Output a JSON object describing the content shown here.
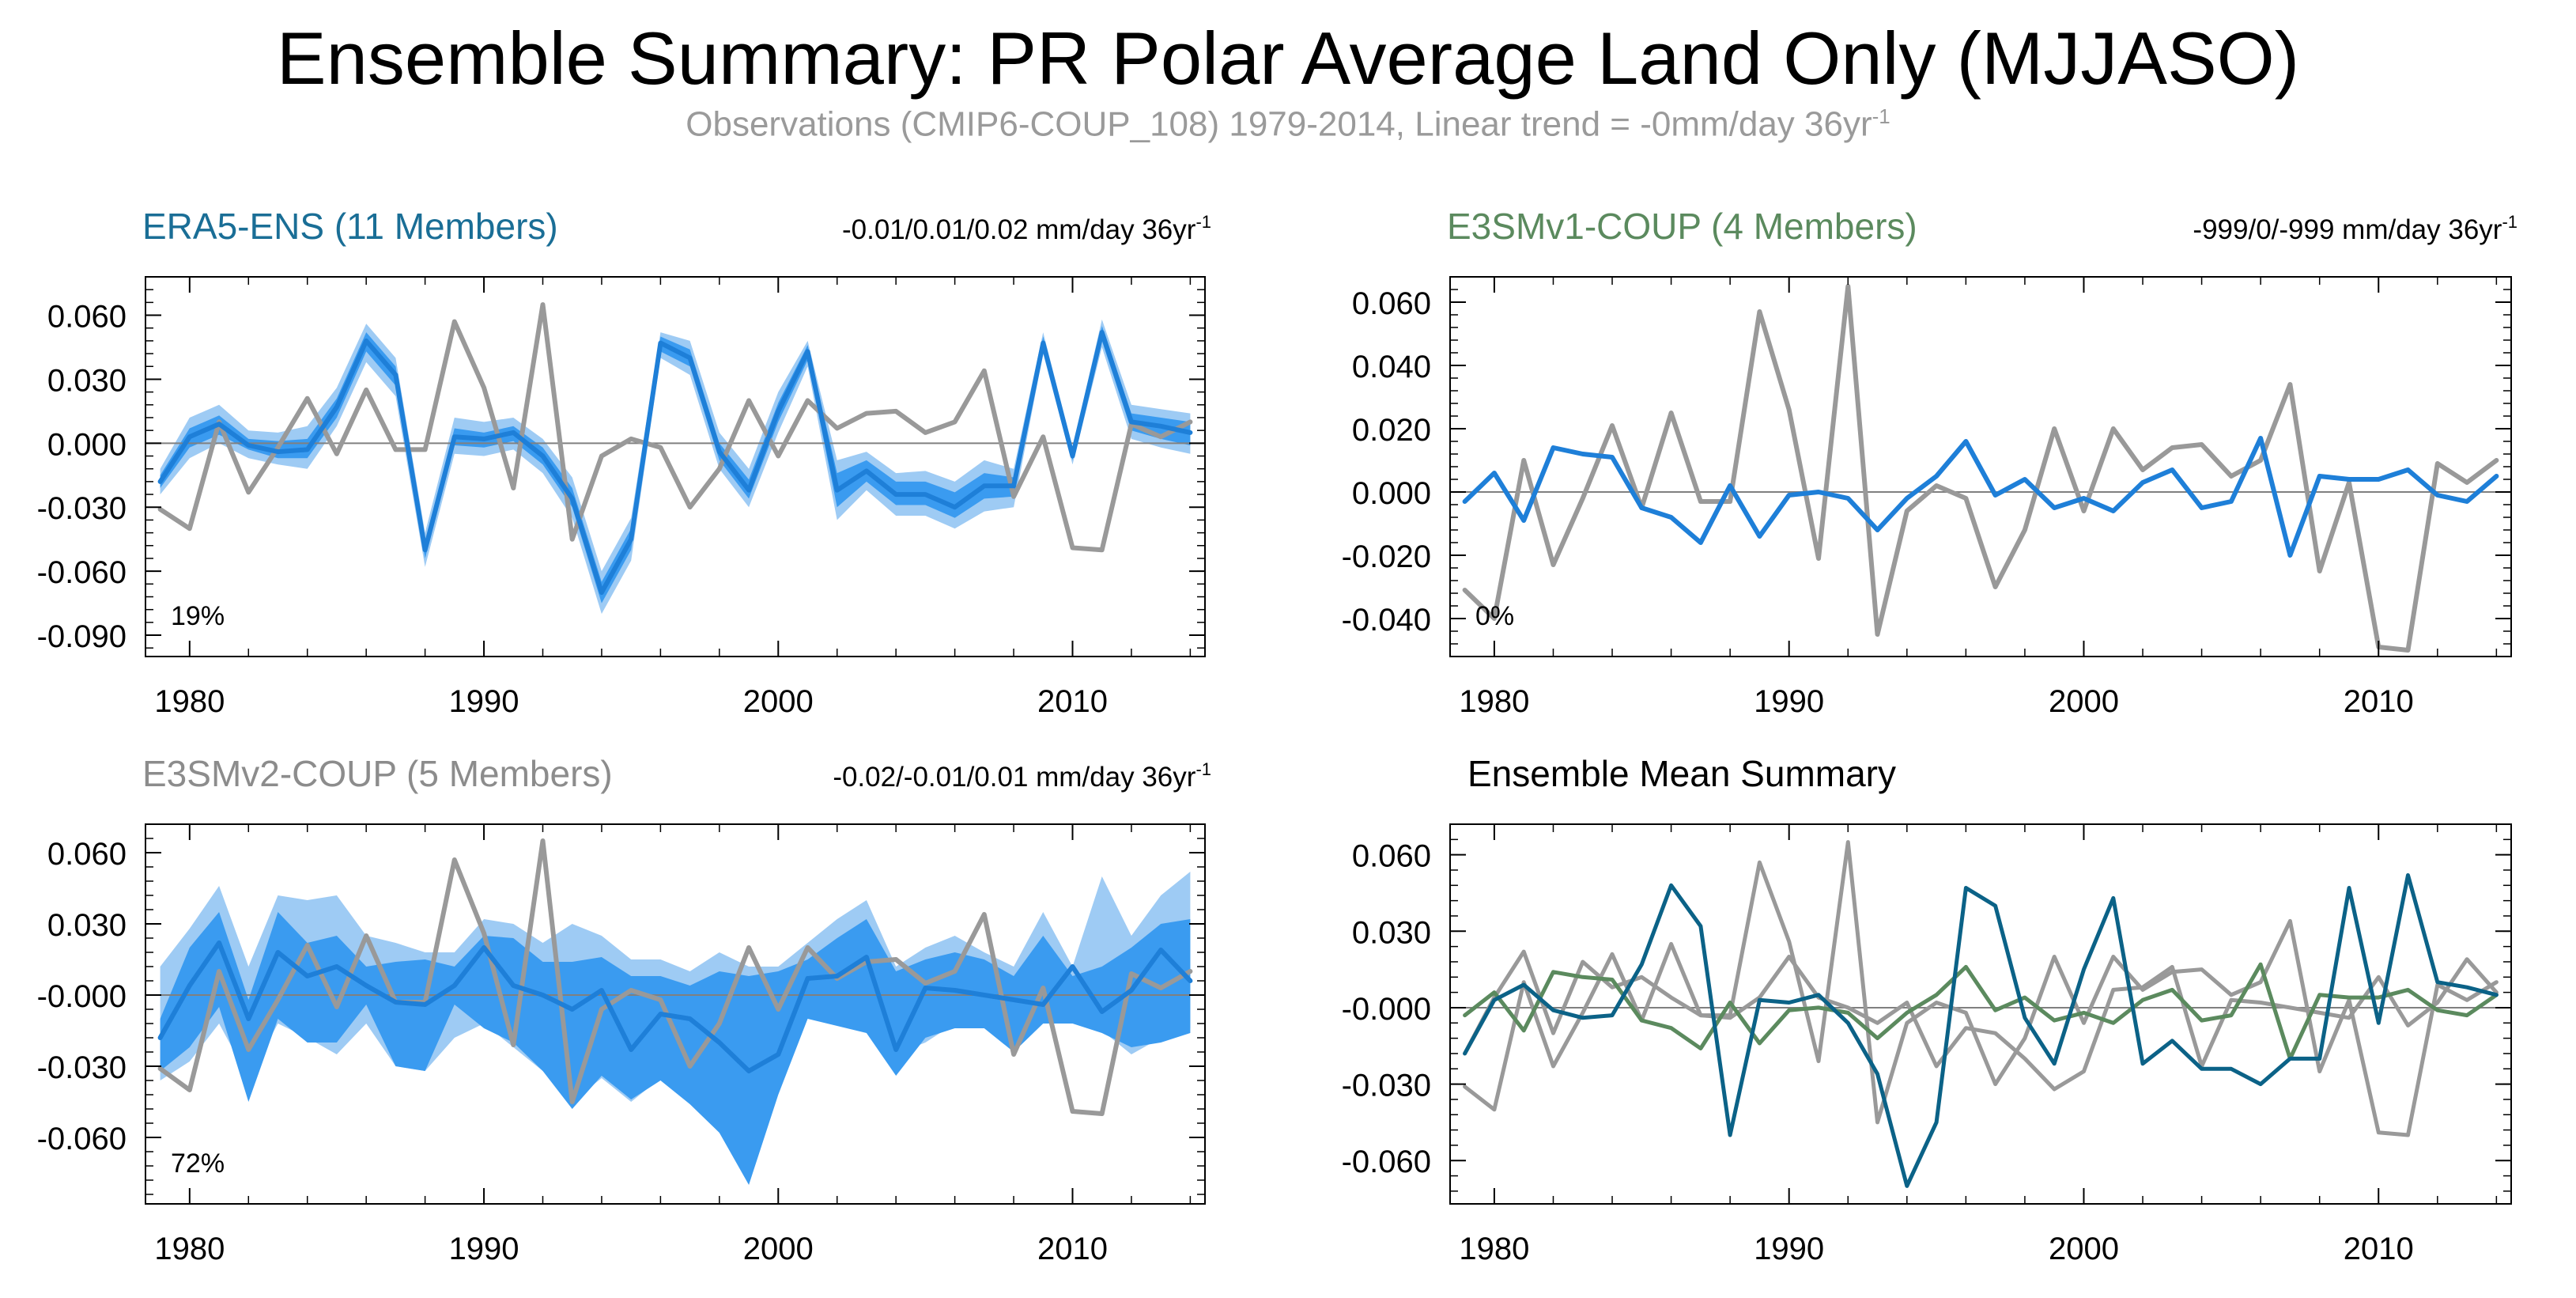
{
  "title": "Ensemble Summary: PR Polar Average Land Only (MJJASO)",
  "subtitle": {
    "text": "Observations (CMIP6-COUP_108) 1979-2014, Linear trend = -0mm/day 36yr",
    "superscript": "-1"
  },
  "colors": {
    "title": "#000000",
    "subtitle": "#9a9a9a",
    "era5_title": "#1a6e96",
    "e3smv1_title": "#5b8a5e",
    "e3smv2_title": "#8c8c8c",
    "band_outer": "#9ecbf4",
    "band_inner": "#3a9bf0",
    "mean_line": "#1e7fd8",
    "obs_line": "#999999",
    "summary_era5": "#0b6287",
    "summary_v1": "#5b8a5e",
    "summary_v2": "#999999",
    "zero_line": "#808080",
    "frame": "#000000"
  },
  "chart_data": [
    {
      "type": "line",
      "panel": "era5",
      "title": "ERA5-ENS (11 Members)",
      "trend_label": "-0.01/0.01/0.02 mm/day 36yr",
      "trend_sup": "-1",
      "percent_label": "19%",
      "xlim": [
        1978.5,
        2014.5
      ],
      "ylim": [
        -0.1,
        0.078
      ],
      "yticks": [
        -0.09,
        -0.06,
        -0.03,
        0.0,
        0.03,
        0.06
      ],
      "ytick_labels": [
        "-0.090",
        "-0.060",
        "-0.030",
        "0.000",
        "0.030",
        "0.060"
      ],
      "xticks": [
        1980,
        1990,
        2000,
        2010
      ],
      "xtick_labels": [
        "1980",
        "1990",
        "2000",
        "2010"
      ],
      "x": [
        1979,
        1980,
        1981,
        1982,
        1983,
        1984,
        1985,
        1986,
        1987,
        1988,
        1989,
        1990,
        1991,
        1992,
        1993,
        1994,
        1995,
        1996,
        1997,
        1998,
        1999,
        2000,
        2001,
        2002,
        2003,
        2004,
        2005,
        2006,
        2007,
        2008,
        2009,
        2010,
        2011,
        2012,
        2013,
        2014
      ],
      "series": [
        {
          "role": "band_outer_low",
          "values": [
            -0.024,
            -0.007,
            0.0,
            -0.007,
            -0.01,
            -0.012,
            0.008,
            0.038,
            0.022,
            -0.058,
            -0.005,
            -0.006,
            -0.003,
            -0.014,
            -0.035,
            -0.08,
            -0.055,
            0.04,
            0.032,
            -0.012,
            -0.03,
            0.005,
            0.036,
            -0.036,
            -0.022,
            -0.034,
            -0.034,
            -0.04,
            -0.032,
            -0.03,
            0.042,
            -0.01,
            0.045,
            0.002,
            -0.002,
            -0.005
          ]
        },
        {
          "role": "band_outer_high",
          "values": [
            -0.012,
            0.012,
            0.018,
            0.006,
            0.005,
            0.008,
            0.026,
            0.056,
            0.04,
            -0.042,
            0.012,
            0.01,
            0.012,
            0.002,
            -0.016,
            -0.06,
            -0.035,
            0.052,
            0.048,
            0.005,
            -0.012,
            0.024,
            0.048,
            -0.008,
            -0.004,
            -0.014,
            -0.013,
            -0.018,
            -0.008,
            -0.012,
            0.052,
            -0.002,
            0.058,
            0.018,
            0.016,
            0.014
          ]
        },
        {
          "role": "band_inner_low",
          "values": [
            -0.021,
            -0.002,
            0.004,
            -0.003,
            -0.007,
            -0.007,
            0.012,
            0.043,
            0.027,
            -0.054,
            -0.001,
            -0.002,
            0.001,
            -0.01,
            -0.03,
            -0.075,
            -0.05,
            0.043,
            0.036,
            -0.008,
            -0.026,
            0.01,
            0.039,
            -0.03,
            -0.018,
            -0.029,
            -0.029,
            -0.035,
            -0.026,
            -0.025,
            0.044,
            -0.008,
            0.048,
            0.006,
            0.002,
            -0.001
          ]
        },
        {
          "role": "band_inner_high",
          "values": [
            -0.015,
            0.007,
            0.013,
            0.002,
            0.001,
            0.002,
            0.021,
            0.052,
            0.036,
            -0.046,
            0.007,
            0.005,
            0.008,
            -0.002,
            -0.021,
            -0.065,
            -0.04,
            0.05,
            0.044,
            0.0,
            -0.017,
            0.019,
            0.046,
            -0.014,
            -0.008,
            -0.018,
            -0.018,
            -0.023,
            -0.014,
            -0.016,
            0.05,
            -0.004,
            0.055,
            0.014,
            0.012,
            0.01
          ]
        },
        {
          "role": "mean",
          "values": [
            -0.018,
            0.003,
            0.009,
            -0.001,
            -0.004,
            -0.003,
            0.017,
            0.048,
            0.032,
            -0.05,
            0.003,
            0.002,
            0.005,
            -0.006,
            -0.026,
            -0.07,
            -0.045,
            0.047,
            0.04,
            -0.004,
            -0.022,
            0.015,
            0.043,
            -0.022,
            -0.013,
            -0.024,
            -0.024,
            -0.03,
            -0.02,
            -0.02,
            0.047,
            -0.006,
            0.052,
            0.01,
            0.008,
            0.005
          ]
        },
        {
          "role": "obs",
          "values": [
            -0.031,
            -0.04,
            0.01,
            -0.023,
            -0.002,
            0.021,
            -0.005,
            0.025,
            -0.003,
            -0.003,
            0.057,
            0.026,
            -0.021,
            0.065,
            -0.045,
            -0.006,
            0.002,
            -0.002,
            -0.03,
            -0.012,
            0.02,
            -0.006,
            0.02,
            0.007,
            0.014,
            0.015,
            0.005,
            0.01,
            0.034,
            -0.025,
            0.003,
            -0.049,
            -0.05,
            0.009,
            0.003,
            0.01
          ]
        }
      ]
    },
    {
      "type": "line",
      "panel": "e3smv1",
      "title": "E3SMv1-COUP (4 Members)",
      "trend_label": "-999/0/-999 mm/day 36yr",
      "trend_sup": "-1",
      "percent_label": "0%",
      "xlim": [
        1978.5,
        2014.5
      ],
      "ylim": [
        -0.052,
        0.068
      ],
      "yticks": [
        -0.04,
        -0.02,
        0.0,
        0.02,
        0.04,
        0.06
      ],
      "ytick_labels": [
        "-0.040",
        "-0.020",
        "0.000",
        "0.020",
        "0.040",
        "0.060"
      ],
      "xticks": [
        1980,
        1990,
        2000,
        2010
      ],
      "xtick_labels": [
        "1980",
        "1990",
        "2000",
        "2010"
      ],
      "x": [
        1979,
        1980,
        1981,
        1982,
        1983,
        1984,
        1985,
        1986,
        1987,
        1988,
        1989,
        1990,
        1991,
        1992,
        1993,
        1994,
        1995,
        1996,
        1997,
        1998,
        1999,
        2000,
        2001,
        2002,
        2003,
        2004,
        2005,
        2006,
        2007,
        2008,
        2009,
        2010,
        2011,
        2012,
        2013,
        2014
      ],
      "series": [
        {
          "role": "mean",
          "values": [
            -0.003,
            0.006,
            -0.009,
            0.014,
            0.012,
            0.011,
            -0.005,
            -0.008,
            -0.016,
            0.002,
            -0.014,
            -0.001,
            0.0,
            -0.002,
            -0.012,
            -0.002,
            0.005,
            0.016,
            -0.001,
            0.004,
            -0.005,
            -0.002,
            -0.006,
            0.003,
            0.007,
            -0.005,
            -0.003,
            0.017,
            -0.02,
            0.005,
            0.004,
            0.004,
            0.007,
            -0.001,
            -0.003,
            0.005
          ]
        },
        {
          "role": "obs",
          "values": [
            -0.031,
            -0.04,
            0.01,
            -0.023,
            -0.002,
            0.021,
            -0.005,
            0.025,
            -0.003,
            -0.003,
            0.057,
            0.026,
            -0.021,
            0.065,
            -0.045,
            -0.006,
            0.002,
            -0.002,
            -0.03,
            -0.012,
            0.02,
            -0.006,
            0.02,
            0.007,
            0.014,
            0.015,
            0.005,
            0.01,
            0.034,
            -0.025,
            0.003,
            -0.049,
            -0.05,
            0.009,
            0.003,
            0.01
          ]
        }
      ]
    },
    {
      "type": "line",
      "panel": "e3smv2",
      "title": "E3SMv2-COUP (5 Members)",
      "trend_label": "-0.02/-0.01/0.01 mm/day 36yr",
      "trend_sup": "-1",
      "percent_label": "72%",
      "xlim": [
        1978.5,
        2014.5
      ],
      "ylim": [
        -0.088,
        0.072
      ],
      "yticks": [
        -0.06,
        -0.03,
        0.0,
        0.03,
        0.06
      ],
      "ytick_labels": [
        "-0.060",
        "-0.030",
        "-0.000",
        "0.030",
        "0.060"
      ],
      "xticks": [
        1980,
        1990,
        2000,
        2010
      ],
      "xtick_labels": [
        "1980",
        "1990",
        "2000",
        "2010"
      ],
      "x": [
        1979,
        1980,
        1981,
        1982,
        1983,
        1984,
        1985,
        1986,
        1987,
        1988,
        1989,
        1990,
        1991,
        1992,
        1993,
        1994,
        1995,
        1996,
        1997,
        1998,
        1999,
        2000,
        2001,
        2002,
        2003,
        2004,
        2005,
        2006,
        2007,
        2008,
        2009,
        2010,
        2011,
        2012,
        2013,
        2014
      ],
      "series": [
        {
          "role": "band_outer_low",
          "values": [
            -0.036,
            -0.028,
            -0.012,
            -0.035,
            -0.012,
            -0.018,
            -0.025,
            -0.012,
            -0.03,
            -0.032,
            -0.018,
            -0.012,
            -0.022,
            -0.032,
            -0.045,
            -0.035,
            -0.045,
            -0.035,
            -0.045,
            -0.058,
            -0.078,
            -0.04,
            -0.008,
            -0.012,
            -0.014,
            -0.025,
            -0.02,
            -0.012,
            -0.012,
            -0.022,
            -0.012,
            -0.01,
            -0.015,
            -0.025,
            -0.018,
            -0.014
          ]
        },
        {
          "role": "band_outer_high",
          "values": [
            0.012,
            0.028,
            0.046,
            0.012,
            0.042,
            0.04,
            0.042,
            0.025,
            0.022,
            0.018,
            0.018,
            0.032,
            0.03,
            0.022,
            0.03,
            0.025,
            0.015,
            0.015,
            0.01,
            0.018,
            0.012,
            0.012,
            0.022,
            0.032,
            0.04,
            0.012,
            0.02,
            0.025,
            0.018,
            0.012,
            0.035,
            0.012,
            0.05,
            0.025,
            0.042,
            0.052
          ]
        },
        {
          "role": "band_inner_low",
          "values": [
            -0.032,
            -0.022,
            -0.005,
            -0.045,
            -0.01,
            -0.02,
            -0.02,
            -0.004,
            -0.03,
            -0.032,
            -0.004,
            -0.014,
            -0.02,
            -0.032,
            -0.048,
            -0.034,
            -0.044,
            -0.036,
            -0.046,
            -0.058,
            -0.08,
            -0.042,
            -0.01,
            -0.013,
            -0.016,
            -0.034,
            -0.018,
            -0.014,
            -0.014,
            -0.024,
            -0.012,
            -0.012,
            -0.016,
            -0.022,
            -0.02,
            -0.016
          ]
        },
        {
          "role": "band_inner_high",
          "values": [
            -0.01,
            0.02,
            0.035,
            -0.002,
            0.035,
            0.022,
            0.025,
            0.012,
            0.014,
            0.015,
            0.012,
            0.025,
            0.024,
            0.014,
            0.014,
            0.016,
            0.008,
            0.008,
            0.004,
            0.01,
            0.008,
            0.01,
            0.015,
            0.024,
            0.032,
            0.01,
            0.015,
            0.018,
            0.015,
            0.008,
            0.025,
            0.008,
            0.012,
            0.02,
            0.03,
            0.032
          ]
        },
        {
          "role": "mean",
          "values": [
            -0.018,
            0.004,
            0.022,
            -0.01,
            0.018,
            0.008,
            0.012,
            0.004,
            -0.003,
            -0.004,
            0.004,
            0.02,
            0.004,
            0.0,
            -0.006,
            0.002,
            -0.023,
            -0.008,
            -0.01,
            -0.02,
            -0.032,
            -0.025,
            0.007,
            0.008,
            0.016,
            -0.023,
            0.003,
            0.002,
            0.0,
            -0.002,
            -0.004,
            0.012,
            -0.007,
            0.002,
            0.019,
            0.006
          ]
        },
        {
          "role": "obs",
          "values": [
            -0.031,
            -0.04,
            0.01,
            -0.023,
            -0.002,
            0.021,
            -0.005,
            0.025,
            -0.003,
            -0.003,
            0.057,
            0.026,
            -0.021,
            0.065,
            -0.045,
            -0.006,
            0.002,
            -0.002,
            -0.03,
            -0.012,
            0.02,
            -0.006,
            0.02,
            0.007,
            0.014,
            0.015,
            0.005,
            0.01,
            0.034,
            -0.025,
            0.003,
            -0.049,
            -0.05,
            0.009,
            0.003,
            0.01
          ]
        }
      ]
    },
    {
      "type": "line",
      "panel": "summary",
      "title": "Ensemble Mean Summary",
      "trend_label": "",
      "trend_sup": "",
      "percent_label": "",
      "xlim": [
        1978.5,
        2014.5
      ],
      "ylim": [
        -0.077,
        0.072
      ],
      "yticks": [
        -0.06,
        -0.03,
        0.0,
        0.03,
        0.06
      ],
      "ytick_labels": [
        "-0.060",
        "-0.030",
        "-0.000",
        "0.030",
        "0.060"
      ],
      "xticks": [
        1980,
        1990,
        2000,
        2010
      ],
      "xtick_labels": [
        "1980",
        "1990",
        "2000",
        "2010"
      ],
      "x": [
        1979,
        1980,
        1981,
        1982,
        1983,
        1984,
        1985,
        1986,
        1987,
        1988,
        1989,
        1990,
        1991,
        1992,
        1993,
        1994,
        1995,
        1996,
        1997,
        1998,
        1999,
        2000,
        2001,
        2002,
        2003,
        2004,
        2005,
        2006,
        2007,
        2008,
        2009,
        2010,
        2011,
        2012,
        2013,
        2014
      ],
      "series": [
        {
          "role": "line_v2",
          "color_key": "summary_v2",
          "values": [
            -0.018,
            0.004,
            0.022,
            -0.01,
            0.018,
            0.008,
            0.012,
            0.004,
            -0.003,
            -0.004,
            0.004,
            0.02,
            0.004,
            0.0,
            -0.006,
            0.002,
            -0.023,
            -0.008,
            -0.01,
            -0.02,
            -0.032,
            -0.025,
            0.007,
            0.008,
            0.016,
            -0.023,
            0.003,
            0.002,
            0.0,
            -0.002,
            -0.004,
            0.012,
            -0.007,
            0.002,
            0.019,
            0.006
          ]
        },
        {
          "role": "line_obs",
          "color_key": "obs_line",
          "values": [
            -0.031,
            -0.04,
            0.01,
            -0.023,
            -0.002,
            0.021,
            -0.005,
            0.025,
            -0.003,
            -0.003,
            0.057,
            0.026,
            -0.021,
            0.065,
            -0.045,
            -0.006,
            0.002,
            -0.002,
            -0.03,
            -0.012,
            0.02,
            -0.006,
            0.02,
            0.007,
            0.014,
            0.015,
            0.005,
            0.01,
            0.034,
            -0.025,
            0.003,
            -0.049,
            -0.05,
            0.009,
            0.003,
            0.01
          ]
        },
        {
          "role": "line_v1",
          "color_key": "summary_v1",
          "values": [
            -0.003,
            0.006,
            -0.009,
            0.014,
            0.012,
            0.011,
            -0.005,
            -0.008,
            -0.016,
            0.002,
            -0.014,
            -0.001,
            0.0,
            -0.002,
            -0.012,
            -0.002,
            0.005,
            0.016,
            -0.001,
            0.004,
            -0.005,
            -0.002,
            -0.006,
            0.003,
            0.007,
            -0.005,
            -0.003,
            0.017,
            -0.02,
            0.005,
            0.004,
            0.004,
            0.007,
            -0.001,
            -0.003,
            0.005
          ]
        },
        {
          "role": "line_era5",
          "color_key": "summary_era5",
          "values": [
            -0.018,
            0.003,
            0.009,
            -0.001,
            -0.004,
            -0.003,
            0.017,
            0.048,
            0.032,
            -0.05,
            0.003,
            0.002,
            0.005,
            -0.006,
            -0.026,
            -0.07,
            -0.045,
            0.047,
            0.04,
            -0.004,
            -0.022,
            0.015,
            0.043,
            -0.022,
            -0.013,
            -0.024,
            -0.024,
            -0.03,
            -0.02,
            -0.02,
            0.047,
            -0.006,
            0.052,
            0.01,
            0.008,
            0.005
          ]
        }
      ]
    }
  ]
}
